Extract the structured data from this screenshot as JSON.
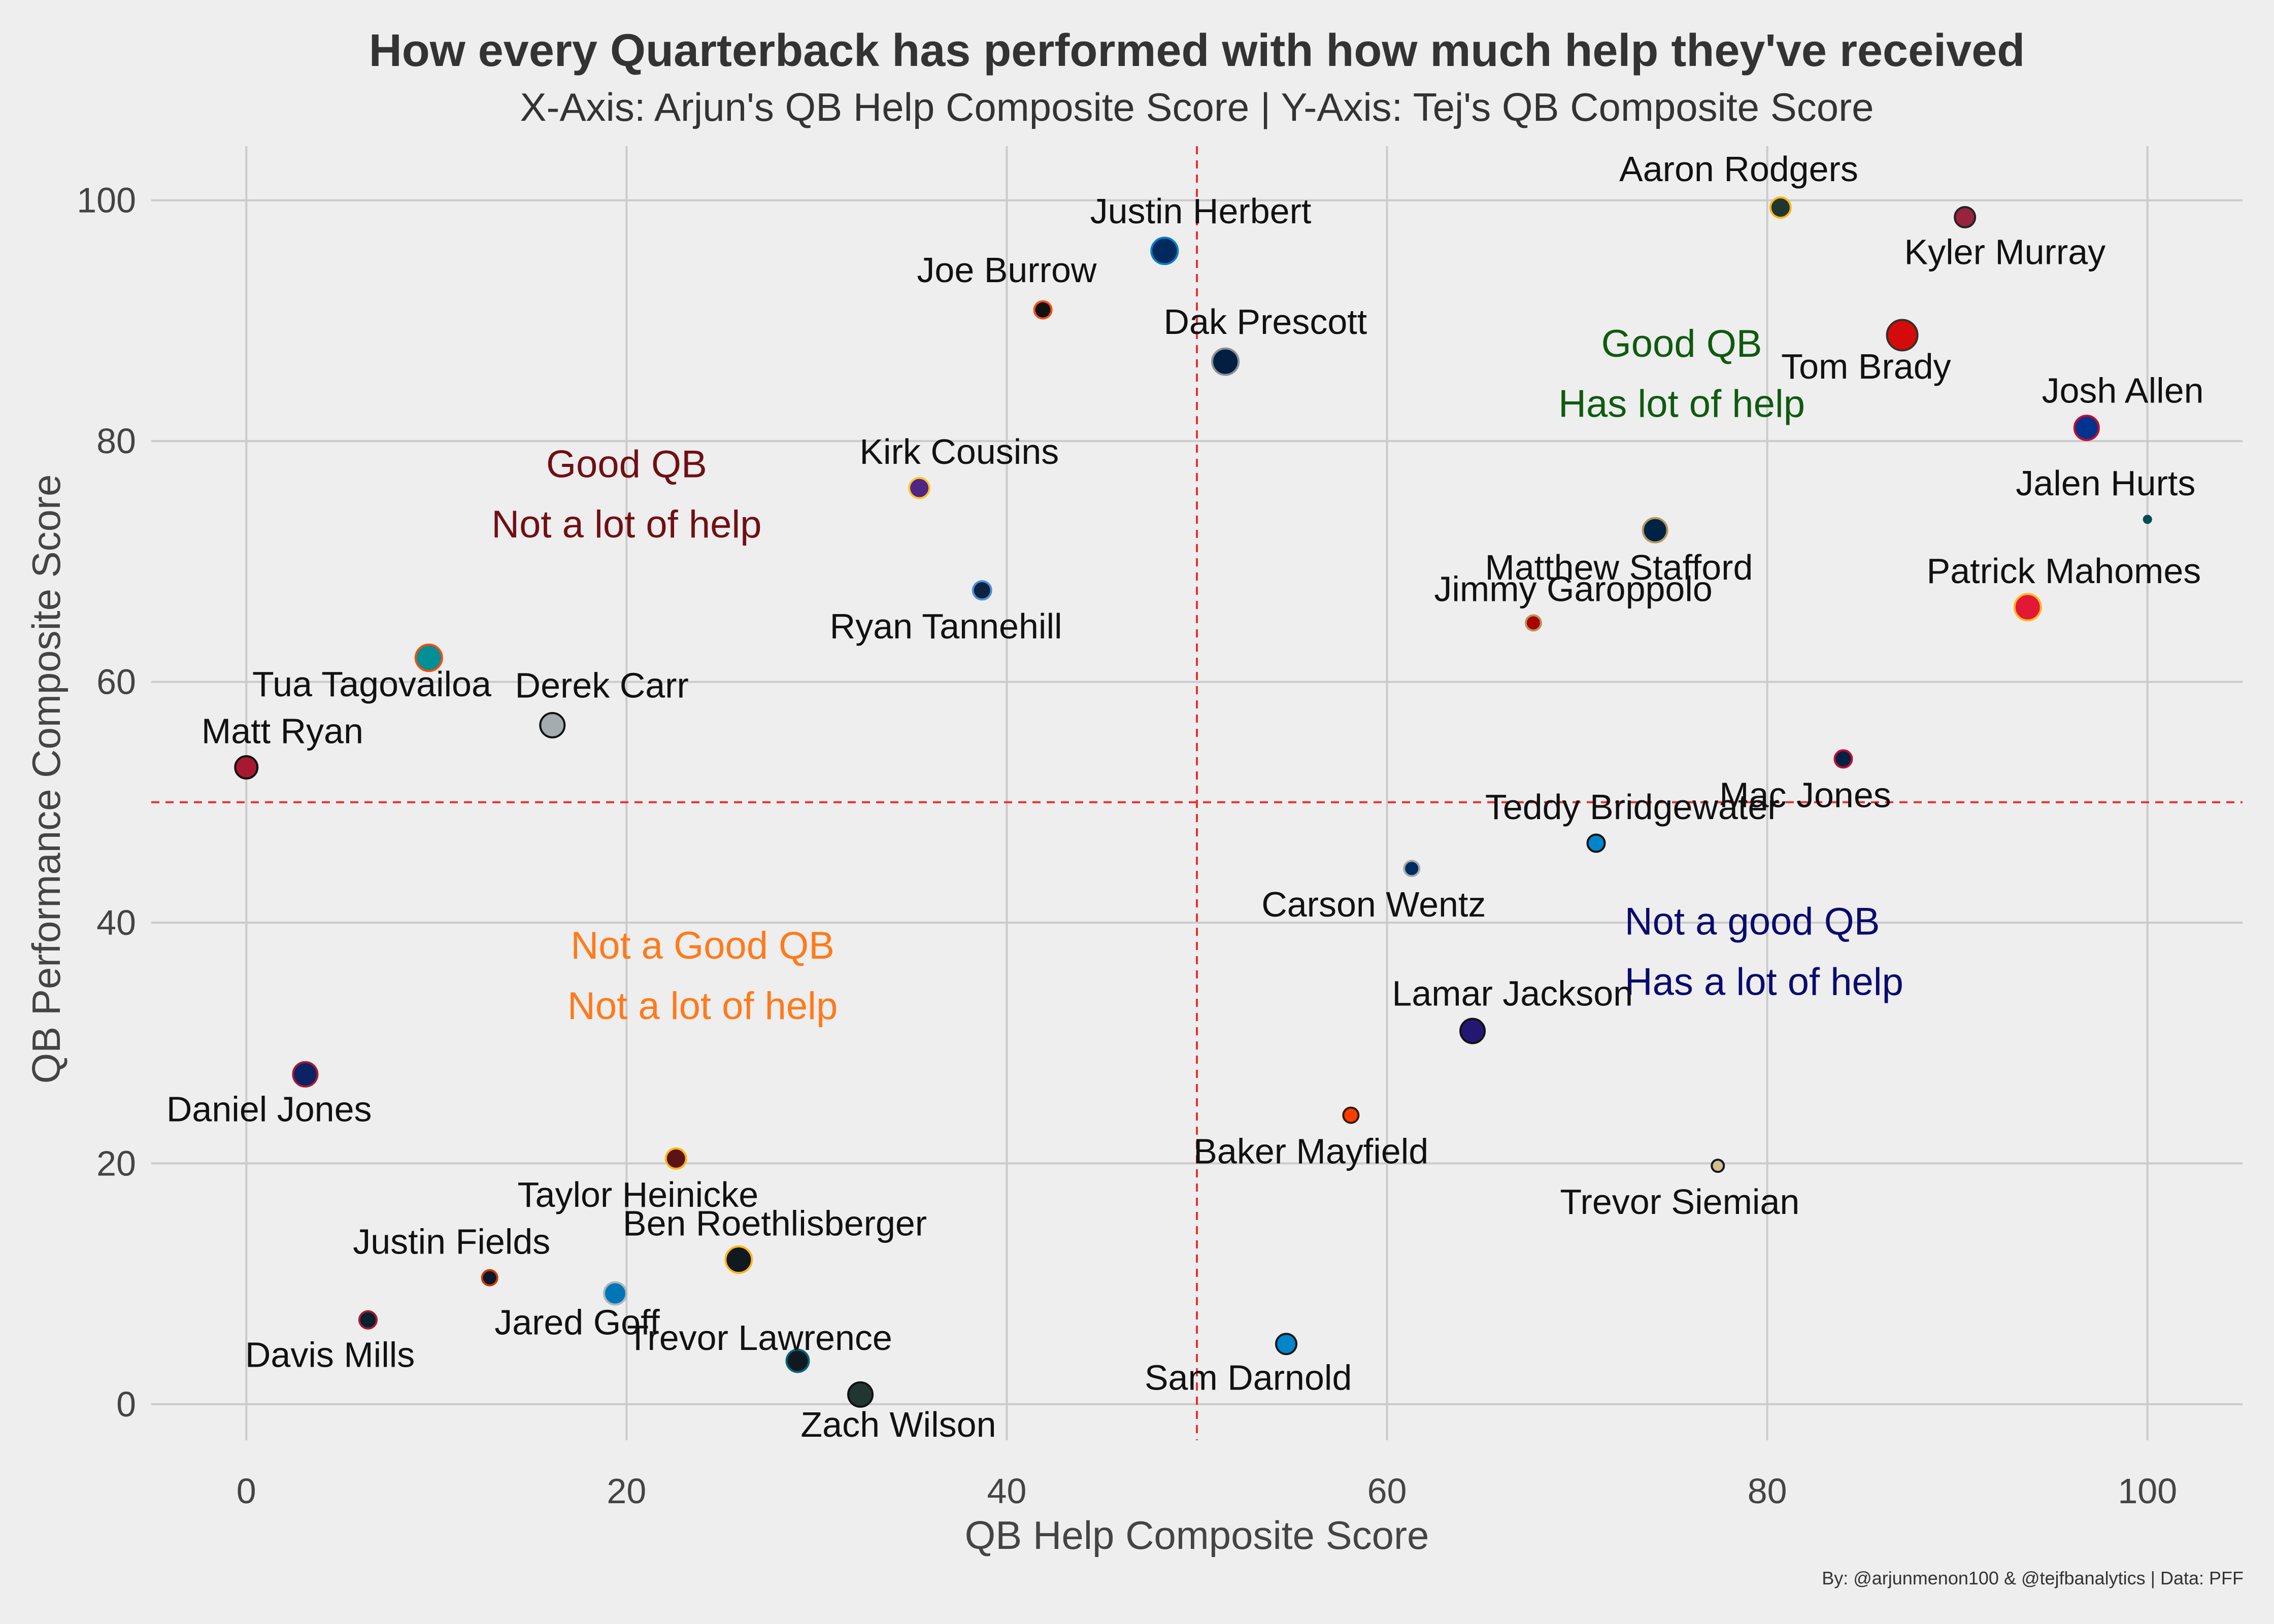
{
  "chart_data": {
    "type": "scatter",
    "title": "How every Quarterback has performed with how much help they've received",
    "subtitle": "X-Axis: Arjun's QB Help Composite Score | Y-Axis: Tej's QB Composite Score",
    "xlabel": "QB Help Composite Score",
    "ylabel": "QB Performance Composite Score",
    "xlim": [
      -5,
      105
    ],
    "ylim": [
      -3,
      104.5
    ],
    "xticks": [
      0,
      20,
      40,
      60,
      80,
      100
    ],
    "yticks": [
      0,
      20,
      40,
      60,
      80,
      100
    ],
    "grid": true,
    "reference_lines": {
      "x": 50,
      "y": 50,
      "color": "#e8322c",
      "style": "dashed"
    },
    "quadrant_labels": [
      {
        "line1": "Good QB",
        "line2": "Has lot of help",
        "color": "#0f5a0f",
        "x": 75.5,
        "y1": 87,
        "y2": 82
      },
      {
        "line1": "Good QB",
        "line2": "Not a lot of help",
        "color": "#700f14",
        "x": 20,
        "y1": 77,
        "y2": 72
      },
      {
        "line1": "Not a Good QB",
        "line2": "Not a lot of help",
        "color": "#ff7a1a",
        "x": 24,
        "y1": 37,
        "y2": 32
      },
      {
        "line1": "Not a good QB",
        "line2": "Has a lot of help",
        "color": "#0a0a6e",
        "x": 72.5,
        "y1": 39,
        "y2": 34,
        "anchor": "start"
      }
    ],
    "points": [
      {
        "name": "Aaron Rodgers",
        "x": 80.7,
        "y": 99.4,
        "r": 20,
        "fill": "#203731",
        "stroke": "#ffb612",
        "lx": 78.5,
        "ly": 101.6,
        "anchor": "middle"
      },
      {
        "name": "Kyler Murray",
        "x": 90.4,
        "y": 98.6,
        "r": 20,
        "fill": "#97233f",
        "stroke": "#222222",
        "lx": 92.5,
        "ly": 94.7,
        "anchor": "middle"
      },
      {
        "name": "Justin Herbert",
        "x": 48.3,
        "y": 95.8,
        "r": 26,
        "fill": "#002a5e",
        "stroke": "#0080c6",
        "lx": 50.2,
        "ly": 98.1,
        "anchor": "middle"
      },
      {
        "name": "Joe Burrow",
        "x": 41.9,
        "y": 90.9,
        "r": 17,
        "fill": "#111111",
        "stroke": "#fb4f14",
        "lx": 40,
        "ly": 93.2,
        "anchor": "middle"
      },
      {
        "name": "Tom Brady",
        "x": 87.1,
        "y": 88.8,
        "r": 30,
        "fill": "#d50a0a",
        "stroke": "#34302b",
        "lx": 85.2,
        "ly": 85.2,
        "anchor": "middle"
      },
      {
        "name": "Dak Prescott",
        "x": 51.5,
        "y": 86.6,
        "r": 26,
        "fill": "#041e42",
        "stroke": "#869397",
        "lx": 53.6,
        "ly": 88.9,
        "anchor": "middle"
      },
      {
        "name": "Josh Allen",
        "x": 96.8,
        "y": 81.1,
        "r": 24,
        "fill": "#00338d",
        "stroke": "#c60c30",
        "lx": 98.7,
        "ly": 83.2,
        "anchor": "middle"
      },
      {
        "name": "Kirk Cousins",
        "x": 35.4,
        "y": 76.1,
        "r": 20,
        "fill": "#4f2683",
        "stroke": "#ffc62f",
        "lx": 37.5,
        "ly": 78.1,
        "anchor": "middle"
      },
      {
        "name": "Jalen Hurts",
        "x": 100,
        "y": 73.5,
        "r": 7,
        "fill": "#004c54",
        "stroke": "#004c54",
        "lx": 97.8,
        "ly": 75.5,
        "anchor": "middle"
      },
      {
        "name": "Matthew Stafford",
        "x": 74.1,
        "y": 72.6,
        "r": 24,
        "fill": "#002244",
        "stroke": "#b3995d",
        "lx": 72.2,
        "ly": 68.5,
        "anchor": "middle"
      },
      {
        "name": "Ryan Tannehill",
        "x": 38.7,
        "y": 67.6,
        "r": 18,
        "fill": "#0c2340",
        "stroke": "#4b92db",
        "lx": 36.8,
        "ly": 63.6,
        "anchor": "middle"
      },
      {
        "name": "Patrick Mahomes",
        "x": 93.7,
        "y": 66.2,
        "r": 26,
        "fill": "#e31837",
        "stroke": "#ffb81c",
        "lx": 95.6,
        "ly": 68.2,
        "anchor": "middle"
      },
      {
        "name": "Jimmy Garoppolo",
        "x": 67.7,
        "y": 64.9,
        "r": 15,
        "fill": "#aa0000",
        "stroke": "#b3995d",
        "lx": 69.8,
        "ly": 66.7,
        "anchor": "middle"
      },
      {
        "name": "Tua Tagovailoa",
        "x": 9.6,
        "y": 62,
        "r": 26,
        "fill": "#008e97",
        "stroke": "#fc4c02",
        "lx": 6.6,
        "ly": 58.8,
        "anchor": "middle"
      },
      {
        "name": "Derek Carr",
        "x": 16.1,
        "y": 56.4,
        "r": 24,
        "fill": "#a5acaf",
        "stroke": "#111111",
        "lx": 18.7,
        "ly": 58.7,
        "anchor": "middle"
      },
      {
        "name": "Mac Jones",
        "x": 84,
        "y": 53.6,
        "r": 17,
        "fill": "#002244",
        "stroke": "#c60c30",
        "lx": 82,
        "ly": 49.6,
        "anchor": "middle"
      },
      {
        "name": "Matt Ryan",
        "x": 0,
        "y": 52.9,
        "r": 22,
        "fill": "#a71930",
        "stroke": "#111111",
        "lx": 1.9,
        "ly": 54.9,
        "anchor": "middle"
      },
      {
        "name": "Teddy Bridgewater",
        "x": 71,
        "y": 46.6,
        "r": 17,
        "fill": "#0085ca",
        "stroke": "#111111",
        "lx": 72.9,
        "ly": 48.6,
        "anchor": "middle"
      },
      {
        "name": "Carson Wentz",
        "x": 61.3,
        "y": 44.5,
        "r": 15,
        "fill": "#002c5f",
        "stroke": "#a2aaad",
        "lx": 59.3,
        "ly": 40.5,
        "anchor": "middle"
      },
      {
        "name": "Lamar Jackson",
        "x": 64.5,
        "y": 31,
        "r": 24,
        "fill": "#241773",
        "stroke": "#111111",
        "lx": 66.6,
        "ly": 33.1,
        "anchor": "middle"
      },
      {
        "name": "Daniel Jones",
        "x": 3.1,
        "y": 27.4,
        "r": 24,
        "fill": "#0b2265",
        "stroke": "#a71930",
        "lx": 1.2,
        "ly": 23.5,
        "anchor": "middle"
      },
      {
        "name": "Baker Mayfield",
        "x": 58.1,
        "y": 24,
        "r": 15,
        "fill": "#ff3c00",
        "stroke": "#311d00",
        "lx": 56,
        "ly": 20,
        "anchor": "middle"
      },
      {
        "name": "Taylor Heinicke",
        "x": 22.6,
        "y": 20.4,
        "r": 20,
        "fill": "#5a1414",
        "stroke": "#ffb612",
        "lx": 20.6,
        "ly": 16.4,
        "anchor": "middle"
      },
      {
        "name": "Trevor Siemian",
        "x": 77.4,
        "y": 19.8,
        "r": 12,
        "fill": "#d3bc8d",
        "stroke": "#101820",
        "lx": 75.4,
        "ly": 15.8,
        "anchor": "middle"
      },
      {
        "name": "Ben Roethlisberger",
        "x": 25.9,
        "y": 12,
        "r": 26,
        "fill": "#101820",
        "stroke": "#ffb612",
        "lx": 27.8,
        "ly": 14,
        "anchor": "middle"
      },
      {
        "name": "Justin Fields",
        "x": 12.8,
        "y": 10.5,
        "r": 15,
        "fill": "#0b162a",
        "stroke": "#c83803",
        "lx": 10.8,
        "ly": 12.5,
        "anchor": "middle"
      },
      {
        "name": "Jared Goff",
        "x": 19.4,
        "y": 9.2,
        "r": 22,
        "fill": "#0076b6",
        "stroke": "#b0b7bc",
        "lx": 17.4,
        "ly": 5.8,
        "anchor": "middle"
      },
      {
        "name": "Davis Mills",
        "x": 6.4,
        "y": 7,
        "r": 17,
        "fill": "#03202f",
        "stroke": "#a71930",
        "lx": 4.4,
        "ly": 3.1,
        "anchor": "middle"
      },
      {
        "name": "Trevor Lawrence",
        "x": 29,
        "y": 3.6,
        "r": 22,
        "fill": "#101820",
        "stroke": "#006778",
        "lx": 27,
        "ly": 4.5,
        "anchor": "middle"
      },
      {
        "name": "Sam Darnold",
        "x": 54.7,
        "y": 5,
        "r": 20,
        "fill": "#0085ca",
        "stroke": "#101820",
        "lx": 52.7,
        "ly": 1.2,
        "anchor": "middle"
      },
      {
        "name": "Zach Wilson",
        "x": 32.3,
        "y": 0.8,
        "r": 24,
        "fill": "#203731",
        "stroke": "#111111",
        "lx": 34.3,
        "ly": -2.7,
        "anchor": "middle"
      }
    ]
  },
  "credit": "By: @arjunmenon100 & @tejfbanalytics | Data: PFF"
}
